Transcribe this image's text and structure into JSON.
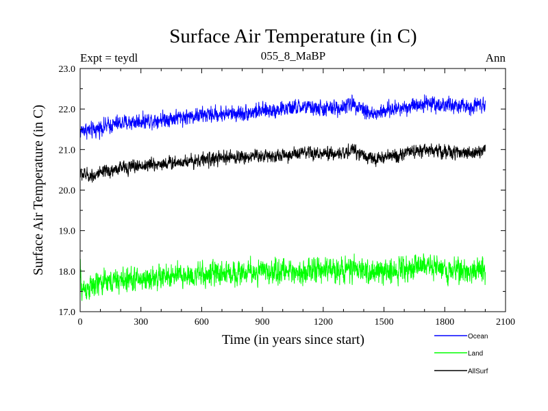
{
  "chart_data": {
    "type": "line",
    "title": "Surface Air Temperature (in C)",
    "subtitle_left": "Expt = teydl",
    "subtitle_center": "055_8_MaBP",
    "subtitle_right": "Ann",
    "xlabel": "Time (in years since start)",
    "ylabel": "Surface Air Temperature (in C)",
    "xlim": [
      0,
      2100
    ],
    "ylim": [
      17.0,
      23.0
    ],
    "xticks": [
      0,
      300,
      600,
      900,
      1200,
      1500,
      1800,
      2100
    ],
    "yticks": [
      "17.0",
      "18.0",
      "19.0",
      "20.0",
      "21.0",
      "22.0",
      "23.0"
    ],
    "x_range": [
      0,
      2000
    ],
    "legend_position": "bottom-right",
    "series": [
      {
        "name": "Ocean",
        "color": "#0000ff",
        "noise": 0.13,
        "anchors": [
          [
            0,
            21.45
          ],
          [
            20,
            21.5
          ],
          [
            60,
            21.45
          ],
          [
            100,
            21.55
          ],
          [
            200,
            21.65
          ],
          [
            300,
            21.7
          ],
          [
            400,
            21.75
          ],
          [
            500,
            21.8
          ],
          [
            600,
            21.85
          ],
          [
            700,
            21.88
          ],
          [
            800,
            21.9
          ],
          [
            900,
            21.95
          ],
          [
            1000,
            22.0
          ],
          [
            1100,
            22.05
          ],
          [
            1200,
            22.0
          ],
          [
            1300,
            22.05
          ],
          [
            1350,
            22.15
          ],
          [
            1450,
            21.85
          ],
          [
            1500,
            21.95
          ],
          [
            1600,
            22.05
          ],
          [
            1700,
            22.15
          ],
          [
            1800,
            22.1
          ],
          [
            1900,
            22.05
          ],
          [
            2000,
            22.15
          ]
        ]
      },
      {
        "name": "Land",
        "color": "#00ff00",
        "noise": 0.2,
        "anchors": [
          [
            0,
            18.2
          ],
          [
            5,
            17.55
          ],
          [
            50,
            17.6
          ],
          [
            100,
            17.7
          ],
          [
            200,
            17.78
          ],
          [
            300,
            17.8
          ],
          [
            400,
            17.85
          ],
          [
            500,
            17.88
          ],
          [
            600,
            17.9
          ],
          [
            700,
            17.95
          ],
          [
            800,
            17.97
          ],
          [
            900,
            17.98
          ],
          [
            1000,
            18.0
          ],
          [
            1100,
            18.0
          ],
          [
            1200,
            18.02
          ],
          [
            1300,
            18.05
          ],
          [
            1400,
            18.0
          ],
          [
            1500,
            17.97
          ],
          [
            1600,
            18.1
          ],
          [
            1700,
            18.15
          ],
          [
            1800,
            18.05
          ],
          [
            1900,
            18.0
          ],
          [
            2000,
            18.05
          ]
        ]
      },
      {
        "name": "AllSurf",
        "color": "#000000",
        "noise": 0.11,
        "anchors": [
          [
            0,
            20.4
          ],
          [
            50,
            20.35
          ],
          [
            100,
            20.4
          ],
          [
            200,
            20.55
          ],
          [
            300,
            20.6
          ],
          [
            400,
            20.65
          ],
          [
            500,
            20.7
          ],
          [
            600,
            20.75
          ],
          [
            700,
            20.78
          ],
          [
            800,
            20.82
          ],
          [
            900,
            20.85
          ],
          [
            1000,
            20.85
          ],
          [
            1100,
            20.9
          ],
          [
            1200,
            20.88
          ],
          [
            1300,
            20.9
          ],
          [
            1350,
            21.0
          ],
          [
            1450,
            20.75
          ],
          [
            1500,
            20.8
          ],
          [
            1600,
            20.9
          ],
          [
            1700,
            21.0
          ],
          [
            1800,
            20.95
          ],
          [
            1900,
            20.9
          ],
          [
            2000,
            21.0
          ]
        ]
      }
    ]
  }
}
